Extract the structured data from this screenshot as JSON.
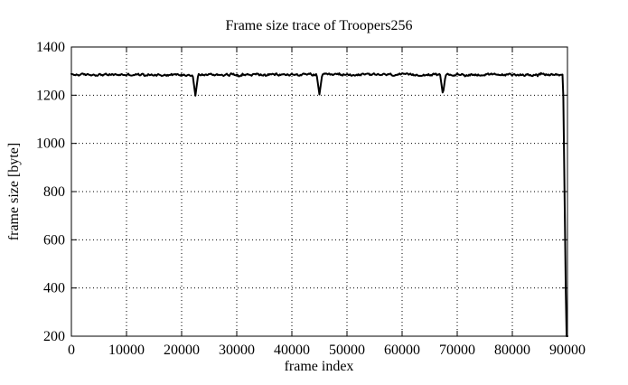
{
  "chart_data": {
    "type": "line",
    "title": "Frame size trace of Troopers256",
    "xlabel": "frame index",
    "ylabel": "frame size [byte]",
    "xlim": [
      0,
      90000
    ],
    "ylim": [
      200,
      1400
    ],
    "x_ticks": [
      0,
      10000,
      20000,
      30000,
      40000,
      50000,
      60000,
      70000,
      80000,
      90000
    ],
    "y_ticks": [
      200,
      400,
      600,
      800,
      1000,
      1200,
      1400
    ],
    "grid": "dotted",
    "legend_position": "none",
    "line_color": "#000000",
    "background_color": "#ffffff",
    "series": [
      {
        "name": "frame size trace",
        "baseline_value": 1285,
        "noise_amplitude": 7,
        "sample_step": 150,
        "noise_seed": 1234567,
        "dips": [
          {
            "x": 22500,
            "min_value": 1198,
            "half_width": 500
          },
          {
            "x": 45000,
            "min_value": 1203,
            "half_width": 500
          },
          {
            "x": 67400,
            "min_value": 1203,
            "half_width": 500
          }
        ],
        "final_drop": {
          "x_start": 89200,
          "x_end": 89800,
          "end_value": 200
        }
      }
    ]
  }
}
